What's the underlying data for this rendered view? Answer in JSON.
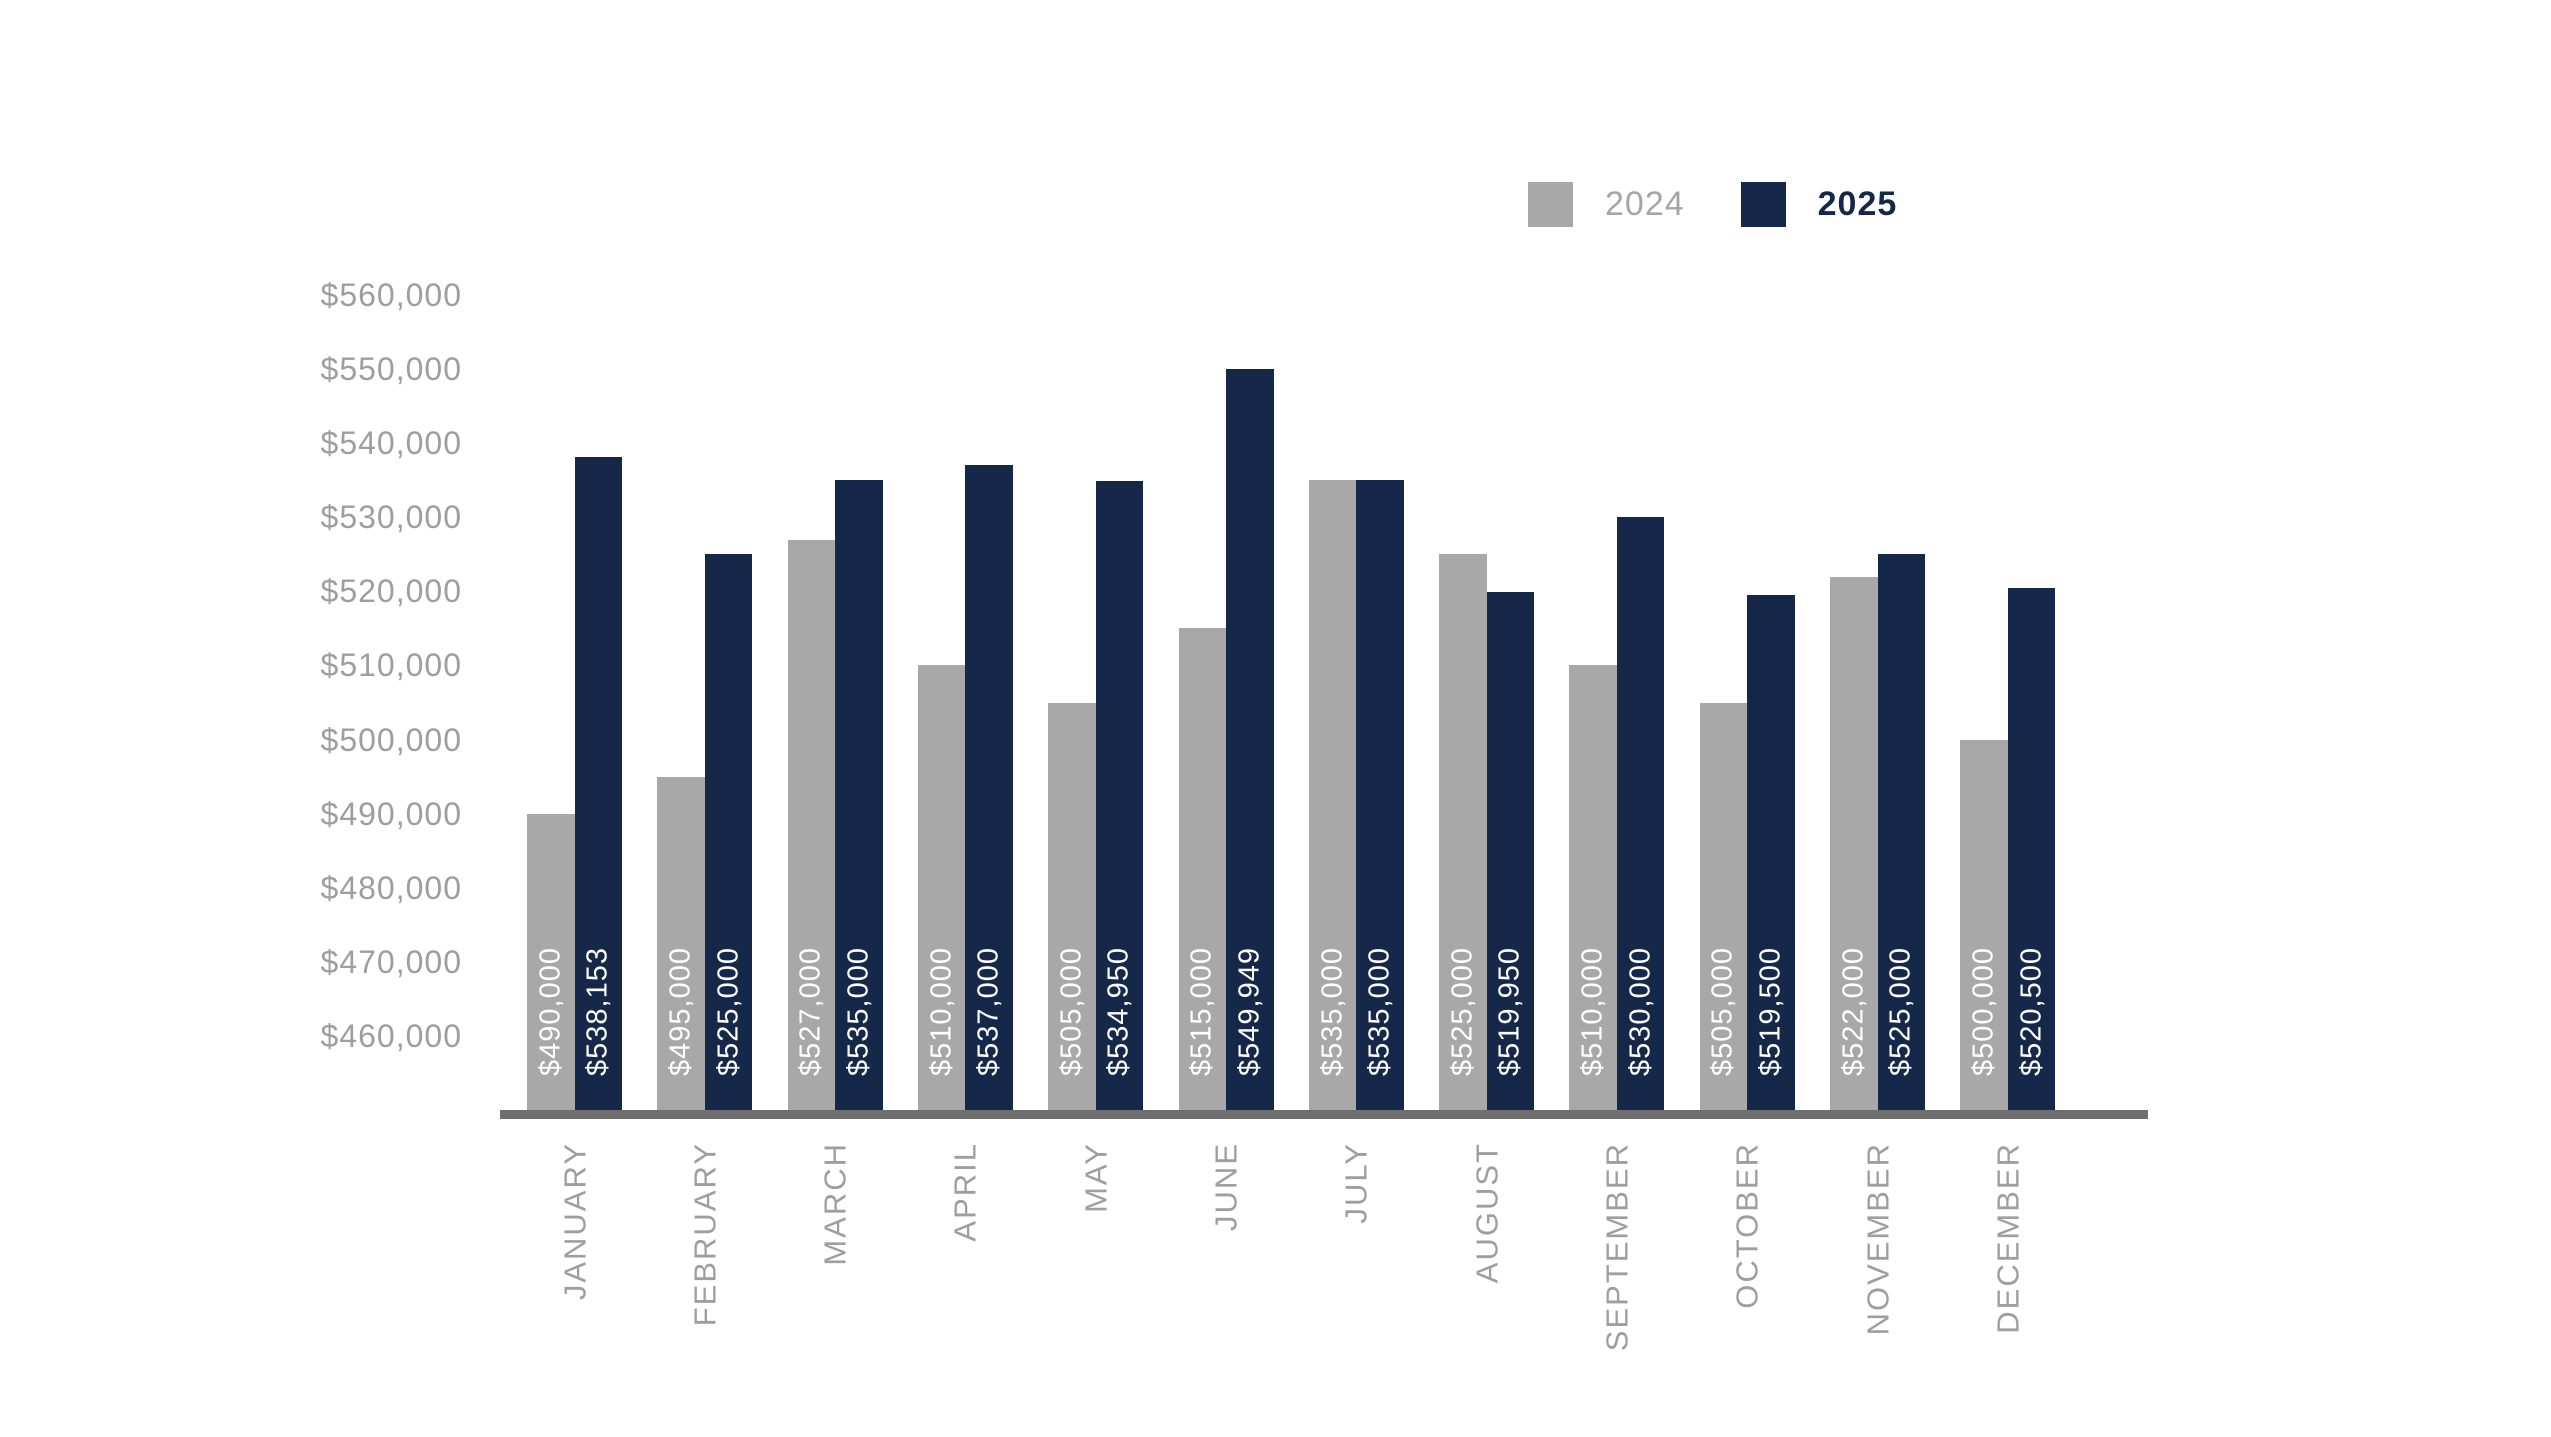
{
  "page": {
    "background": "#ffffff"
  },
  "legend": {
    "position": "top-right",
    "items": [
      {
        "label": "2024",
        "swatch_color": "#a8a8a8",
        "text_color": "#a5a5a5",
        "bold": false
      },
      {
        "label": "2025",
        "swatch_color": "#16284a",
        "text_color": "#16284a",
        "bold": true
      }
    ]
  },
  "chart_data": {
    "type": "bar",
    "title": "",
    "categories": [
      "JANUARY",
      "FEBRUARY",
      "MARCH",
      "APRIL",
      "MAY",
      "JUNE",
      "JULY",
      "AUGUST",
      "SEPTEMBER",
      "OCTOBER",
      "NOVEMBER",
      "DECEMBER"
    ],
    "series": [
      {
        "name": "2024",
        "color": "#a8a8a8",
        "values": [
          490000,
          495000,
          527000,
          510000,
          505000,
          515000,
          535000,
          525000,
          510000,
          505000,
          522000,
          500000
        ],
        "bar_labels": [
          "$490,000",
          "$495,000",
          "$527,000",
          "$510,000",
          "$505,000",
          "$515,000",
          "$535,000",
          "$525,000",
          "$510,000",
          "$505,000",
          "$522,000",
          "$500,000"
        ]
      },
      {
        "name": "2025",
        "color": "#16284a",
        "values": [
          538153,
          525000,
          535000,
          537000,
          534950,
          549949,
          535000,
          519950,
          530000,
          519500,
          525000,
          520500
        ],
        "bar_labels": [
          "$538,153",
          "$525,000",
          "$535,000",
          "$537,000",
          "$534,950",
          "$549,949",
          "$535,000",
          "$519,950",
          "$530,000",
          "$519,500",
          "$525,000",
          "$520,500"
        ]
      }
    ],
    "y_axis": {
      "min": 450000,
      "max": 560000,
      "ticks": [
        {
          "value": 560000,
          "label": "$560,000"
        },
        {
          "value": 550000,
          "label": "$550,000"
        },
        {
          "value": 540000,
          "label": "$540,000"
        },
        {
          "value": 530000,
          "label": "$530,000"
        },
        {
          "value": 520000,
          "label": "$520,000"
        },
        {
          "value": 510000,
          "label": "$510,000"
        },
        {
          "value": 500000,
          "label": "$500,000"
        },
        {
          "value": 490000,
          "label": "$490,000"
        },
        {
          "value": 480000,
          "label": "$480,000"
        },
        {
          "value": 470000,
          "label": "$470,000"
        },
        {
          "value": 460000,
          "label": "$460,000"
        }
      ],
      "tick_text_color": "#9e9e9e"
    },
    "x_axis": {
      "label_color": "#9e9e9e",
      "axis_line_color": "#6e6e6e"
    },
    "grid": false,
    "legend_position": "top-right",
    "bar_value_label_color": "#ffffff",
    "bar_value_label_rotation": "vertical-bottom-to-top"
  }
}
